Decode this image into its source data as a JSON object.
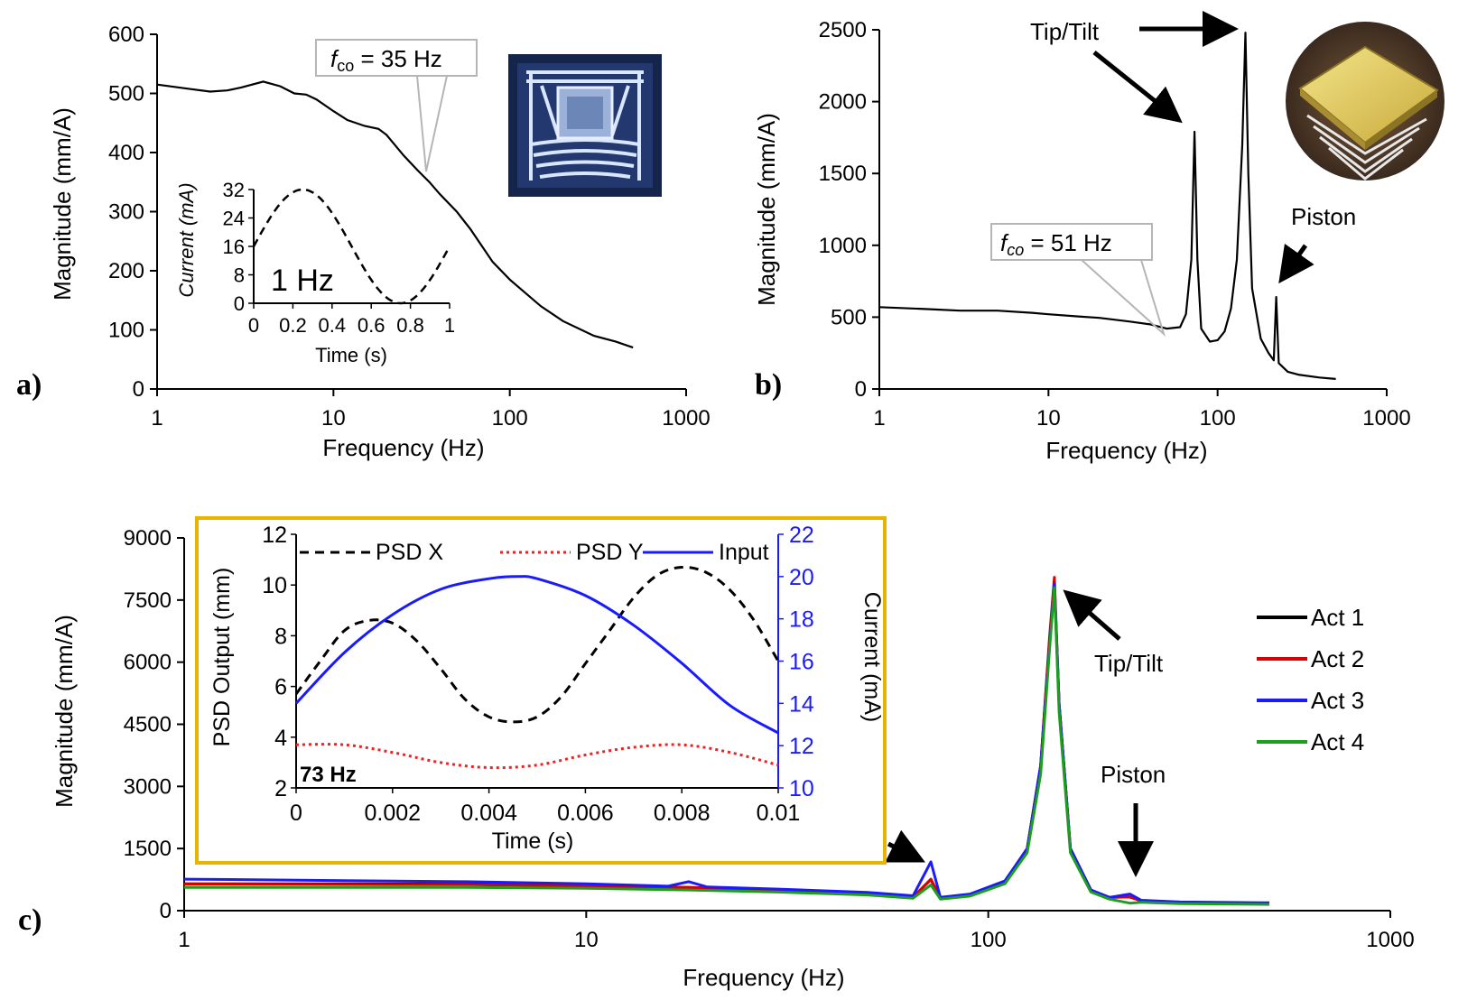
{
  "chart_data": [
    {
      "panel": "a)",
      "type": "line",
      "title": "",
      "xlabel": "Frequency (Hz)",
      "ylabel": "Magnitude (mm/A)",
      "xscale": "log",
      "xlim": [
        1,
        1000
      ],
      "ylim": [
        0,
        600
      ],
      "xticks": [
        "1",
        "10",
        "100",
        "1000"
      ],
      "yticks": [
        "0",
        "100",
        "200",
        "300",
        "400",
        "500",
        "600"
      ],
      "series": [
        {
          "name": "Magnitude",
          "color": "#000000",
          "x": [
            1,
            1.5,
            2,
            2.5,
            3,
            4,
            5,
            6,
            7,
            8,
            10,
            12,
            15,
            18,
            20,
            25,
            30,
            35,
            40,
            50,
            60,
            80,
            100,
            150,
            200,
            300,
            400,
            500
          ],
          "y": [
            515,
            508,
            503,
            505,
            510,
            520,
            512,
            500,
            498,
            490,
            470,
            455,
            445,
            440,
            430,
            395,
            370,
            350,
            330,
            300,
            270,
            215,
            185,
            140,
            115,
            90,
            80,
            70
          ]
        }
      ],
      "annotation": {
        "label": "f",
        "sub": "co",
        "rest": " = 35 Hz",
        "x": 35
      },
      "inset": {
        "xlabel": "Time (s)",
        "ylabel": "Current (mA)",
        "xlim": [
          0,
          1
        ],
        "ylim": [
          0,
          32
        ],
        "xticks": [
          "0",
          "0.2",
          "0.4",
          "0.6",
          "0.8",
          "1"
        ],
        "yticks": [
          "0",
          "8",
          "16",
          "24",
          "32"
        ],
        "label": "1 Hz",
        "series": {
          "offset": 16,
          "amplitude": 16,
          "frequency_hz": 1,
          "style": "dashed"
        }
      },
      "photo_icon": "mems-mirror-top-view-photo"
    },
    {
      "panel": "b)",
      "type": "line",
      "xlabel": "Frequency (Hz)",
      "ylabel": "Magnitude (mm/A)",
      "xscale": "log",
      "xlim": [
        1,
        1000
      ],
      "ylim": [
        0,
        2500
      ],
      "xticks": [
        "1",
        "10",
        "100",
        "1000"
      ],
      "yticks": [
        "0",
        "500",
        "1000",
        "1500",
        "2000",
        "2500"
      ],
      "series": [
        {
          "name": "Magnitude",
          "color": "#000000",
          "x": [
            1,
            2,
            3,
            5,
            8,
            10,
            15,
            20,
            30,
            40,
            50,
            60,
            65,
            70,
            73,
            76,
            80,
            90,
            100,
            110,
            120,
            130,
            140,
            146,
            152,
            160,
            180,
            200,
            215,
            222,
            230,
            260,
            300,
            400,
            500
          ],
          "y": [
            570,
            555,
            545,
            545,
            530,
            520,
            505,
            495,
            470,
            450,
            420,
            430,
            520,
            900,
            1790,
            900,
            420,
            330,
            340,
            400,
            560,
            900,
            1700,
            2480,
            1500,
            700,
            350,
            250,
            200,
            640,
            180,
            120,
            100,
            80,
            70
          ]
        }
      ],
      "annotations": [
        {
          "text": "Tip/Tilt",
          "x": 146
        },
        {
          "text": "Piston",
          "x": 222
        },
        {
          "label": "f",
          "sub": "co",
          "rest": " =  51 Hz",
          "x": 51
        }
      ],
      "photo_icon": "mems-mirror-perspective-photo"
    },
    {
      "panel": "c)",
      "type": "line",
      "xlabel": "Frequency (Hz)",
      "ylabel": "Magnitude (mm/A)",
      "xscale": "log",
      "xlim": [
        1,
        1000
      ],
      "ylim": [
        0,
        9000
      ],
      "xticks": [
        "1",
        "10",
        "100",
        "1000"
      ],
      "yticks": [
        "0",
        "1500",
        "3000",
        "4500",
        "6000",
        "7500",
        "9000"
      ],
      "legend_position": "right",
      "series": [
        {
          "name": "Act 1",
          "color": "#000000",
          "x": [
            1,
            5,
            10,
            18,
            30,
            50,
            65,
            72,
            76,
            90,
            110,
            125,
            135,
            142,
            146,
            150,
            160,
            180,
            200,
            225,
            240,
            300,
            500
          ],
          "y": [
            650,
            640,
            600,
            560,
            500,
            420,
            330,
            750,
            300,
            380,
            700,
            1500,
            3500,
            6500,
            7900,
            5000,
            1500,
            500,
            320,
            330,
            240,
            200,
            180
          ]
        },
        {
          "name": "Act 2",
          "color": "#dd0000",
          "x": [
            1,
            5,
            10,
            18,
            30,
            50,
            65,
            72,
            76,
            90,
            110,
            125,
            135,
            142,
            146,
            150,
            160,
            180,
            200,
            225,
            240,
            300,
            500
          ],
          "y": [
            640,
            630,
            590,
            560,
            500,
            420,
            330,
            760,
            300,
            380,
            700,
            1500,
            3500,
            6600,
            8050,
            5000,
            1500,
            500,
            320,
            330,
            240,
            200,
            180
          ]
        },
        {
          "name": "Act 3",
          "color": "#1a1aff",
          "x": [
            1,
            5,
            10,
            16,
            18,
            20,
            30,
            50,
            65,
            72,
            76,
            90,
            110,
            125,
            135,
            142,
            146,
            150,
            160,
            180,
            200,
            225,
            240,
            300,
            500
          ],
          "y": [
            760,
            700,
            650,
            590,
            700,
            570,
            520,
            440,
            360,
            1180,
            320,
            400,
            720,
            1500,
            3500,
            6400,
            7900,
            5000,
            1500,
            500,
            320,
            400,
            250,
            210,
            190
          ]
        },
        {
          "name": "Act 4",
          "color": "#1e9e1e",
          "x": [
            1,
            5,
            10,
            18,
            30,
            50,
            65,
            72,
            76,
            90,
            110,
            125,
            135,
            142,
            146,
            150,
            160,
            180,
            200,
            225,
            240,
            300,
            500
          ],
          "y": [
            560,
            560,
            540,
            500,
            450,
            380,
            300,
            620,
            280,
            350,
            650,
            1400,
            3300,
            6300,
            7800,
            4800,
            1400,
            450,
            280,
            180,
            200,
            170,
            150
          ]
        }
      ],
      "annotations": [
        {
          "text": "Tip/Tilt",
          "x": 146
        },
        {
          "text": "Piston",
          "x": 225
        }
      ],
      "inset": {
        "xlabel": "Time (s)",
        "ylabel_left": "PSD Output (mm)",
        "ylabel_right": "Current (mA)",
        "xlim": [
          0,
          0.01
        ],
        "ylim_left": [
          2,
          12
        ],
        "ylim_right": [
          10,
          22
        ],
        "xticks": [
          "0",
          "0.002",
          "0.004",
          "0.006",
          "0.008",
          "0.01"
        ],
        "yticks_left": [
          "2",
          "4",
          "6",
          "8",
          "10",
          "12"
        ],
        "yticks_right": [
          "10",
          "12",
          "14",
          "16",
          "18",
          "20",
          "22"
        ],
        "label": "73 Hz",
        "border_color": "#e8b400",
        "series": [
          {
            "name": "PSD X",
            "color": "#000000",
            "style": "dashed",
            "axis": "left",
            "x": [
              0,
              0.0005,
              0.001,
              0.0015,
              0.002,
              0.0025,
              0.003,
              0.0035,
              0.004,
              0.0045,
              0.005,
              0.0055,
              0.006,
              0.0065,
              0.007,
              0.0075,
              0.008,
              0.0085,
              0.009,
              0.0095,
              0.01
            ],
            "y": [
              5.7,
              7.0,
              8.2,
              8.6,
              8.5,
              7.8,
              6.7,
              5.5,
              4.8,
              4.6,
              4.8,
              5.6,
              6.9,
              8.2,
              9.5,
              10.4,
              10.7,
              10.5,
              9.8,
              8.6,
              7.0
            ]
          },
          {
            "name": "PSD Y",
            "color": "#ee2222",
            "style": "dotted",
            "axis": "left",
            "x": [
              0,
              0.001,
              0.002,
              0.003,
              0.004,
              0.005,
              0.006,
              0.007,
              0.008,
              0.009,
              0.01
            ],
            "y": [
              3.7,
              3.7,
              3.4,
              3.0,
              2.8,
              2.9,
              3.3,
              3.6,
              3.7,
              3.4,
              2.9
            ]
          },
          {
            "name": "Input",
            "color": "#1a1aff",
            "style": "solid",
            "axis": "right",
            "x": [
              0,
              0.001,
              0.002,
              0.003,
              0.004,
              0.0046,
              0.005,
              0.006,
              0.007,
              0.008,
              0.009,
              0.01
            ],
            "y": [
              14.0,
              16.4,
              18.2,
              19.4,
              19.9,
              20.0,
              19.9,
              19.1,
              17.7,
              15.9,
              13.9,
              12.6
            ]
          }
        ]
      }
    }
  ]
}
